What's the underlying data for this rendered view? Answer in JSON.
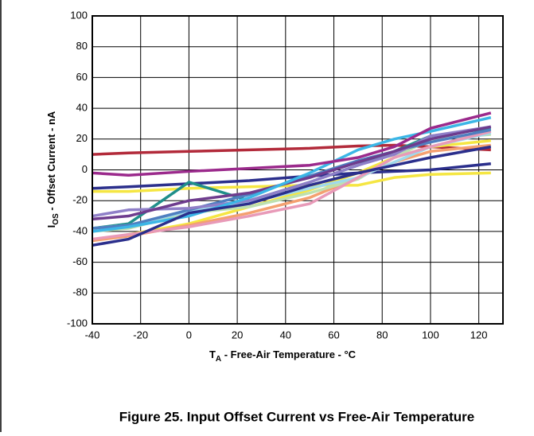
{
  "chart_data": {
    "type": "line",
    "x_label": {
      "main": "T",
      "sub": "A",
      "rest": " - Free-Air Temperature - °C"
    },
    "y_label": {
      "main": "I",
      "sub": "OS",
      "rest": " - Offset Current - nA"
    },
    "caption": "Figure 25. Input Offset Current vs Free-Air Temperature",
    "x": [
      -40,
      -25,
      0,
      25,
      50,
      70,
      85,
      100,
      125
    ],
    "xlim": [
      -40,
      130
    ],
    "xticks": [
      -40,
      -20,
      0,
      20,
      40,
      60,
      80,
      100,
      120
    ],
    "ylim": [
      -100,
      100
    ],
    "yticks": [
      -100,
      -80,
      -60,
      -40,
      -20,
      0,
      20,
      40,
      60,
      80,
      100
    ],
    "grid": true,
    "series": [
      {
        "color": "#b22a3a",
        "values": [
          10,
          11,
          12,
          13,
          14,
          15.5,
          16,
          15,
          13
        ]
      },
      {
        "color": "#2b2f8c",
        "values": [
          -12,
          -11,
          -9,
          -7,
          -4,
          -2,
          -1,
          0,
          4
        ]
      },
      {
        "color": "#f5e642",
        "values": [
          -14,
          -14,
          -12,
          -11,
          -10,
          -10,
          -5,
          -3,
          -2
        ]
      },
      {
        "color": "#f5e642",
        "values": [
          -46,
          -42,
          -35,
          -24,
          -13,
          -2,
          8,
          15,
          19
        ]
      },
      {
        "color": "#f4a070",
        "values": [
          -46,
          -43,
          -36,
          -28,
          -18,
          -5,
          5,
          12,
          16
        ]
      },
      {
        "color": "#1f8f8a",
        "values": [
          -38,
          -35,
          -8,
          -20,
          -8,
          3,
          12,
          22,
          27
        ]
      },
      {
        "color": "#bde0b0",
        "values": [
          -40,
          -38,
          -28,
          -24,
          -15,
          -6,
          8,
          20,
          23
        ]
      },
      {
        "color": "#9fd9ec",
        "values": [
          -38,
          -36,
          -27,
          -21,
          -12,
          -5,
          5,
          15,
          24
        ]
      },
      {
        "color": "#e89ab8",
        "values": [
          -45,
          -42,
          -37,
          -30,
          -22,
          -5,
          8,
          15,
          25
        ]
      },
      {
        "color": "#4f7fc0",
        "values": [
          -38,
          -36,
          -26,
          -16,
          -4,
          6,
          12,
          18,
          26
        ]
      },
      {
        "color": "#8f7fc8",
        "values": [
          -30,
          -26,
          -25,
          -20,
          -8,
          3,
          10,
          22,
          28
        ]
      },
      {
        "color": "#6e3c8e",
        "values": [
          -32,
          -30,
          -20,
          -15,
          -5,
          5,
          12,
          20,
          28
        ]
      },
      {
        "color": "#3cb6e6",
        "values": [
          -40,
          -37,
          -30,
          -18,
          -2,
          13,
          20,
          25,
          34
        ]
      },
      {
        "color": "#2b2f8c",
        "values": [
          -49,
          -45,
          -28,
          -22,
          -10,
          -2,
          3,
          8,
          15
        ]
      },
      {
        "color": "#9b2a8c",
        "values": [
          -2,
          -3.5,
          -1,
          1,
          3,
          8,
          15,
          27,
          37
        ]
      }
    ]
  }
}
